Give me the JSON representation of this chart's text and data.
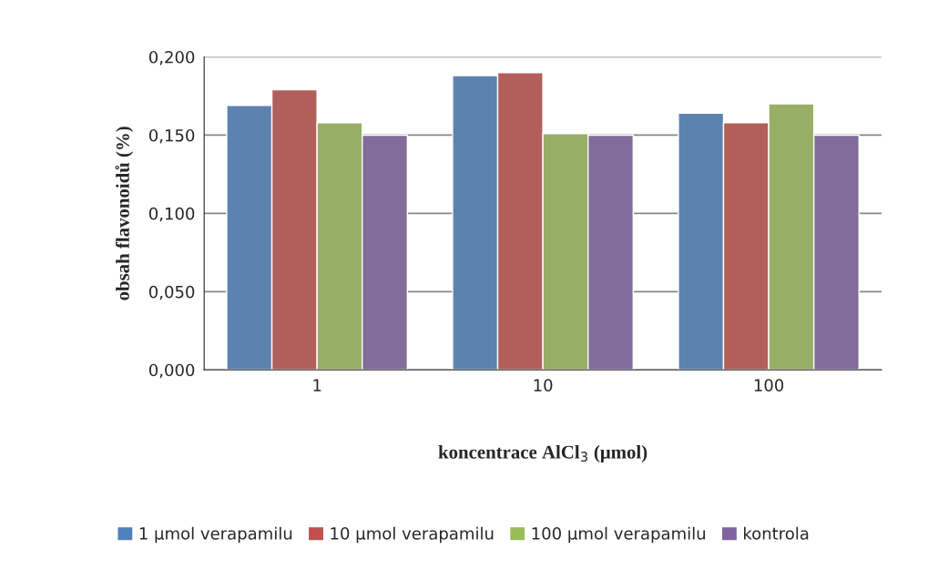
{
  "chart_data": {
    "type": "bar",
    "xlabel": "koncentrace AlCl$_{3}$ (μmol)",
    "ylabel": "obsah flavonoidů (%)",
    "categories": [
      "1",
      "10",
      "100"
    ],
    "series": [
      {
        "name": "1 μmol verapamilu",
        "color": "#4f81bd",
        "values": [
          0.169,
          0.188,
          0.164
        ]
      },
      {
        "name": "10 μmol verapamilu",
        "color": "#c0504d",
        "values": [
          0.179,
          0.19,
          0.158
        ]
      },
      {
        "name": "100 μmol verapamilu",
        "color": "#9bbb59",
        "values": [
          0.158,
          0.151,
          0.17
        ]
      },
      {
        "name": "kontrola",
        "color": "#8064a2",
        "values": [
          0.15,
          0.15,
          0.15
        ]
      }
    ],
    "ylim": [
      0,
      0.2
    ],
    "yticks": [
      {
        "value": 0,
        "label": "0,000"
      },
      {
        "value": 0.05,
        "label": "0,050"
      },
      {
        "value": 0.1,
        "label": "0,100"
      },
      {
        "value": 0.15,
        "label": "0,150"
      },
      {
        "value": 0.2,
        "label": "0,200"
      }
    ],
    "grid": "y",
    "legend": "bottom"
  }
}
